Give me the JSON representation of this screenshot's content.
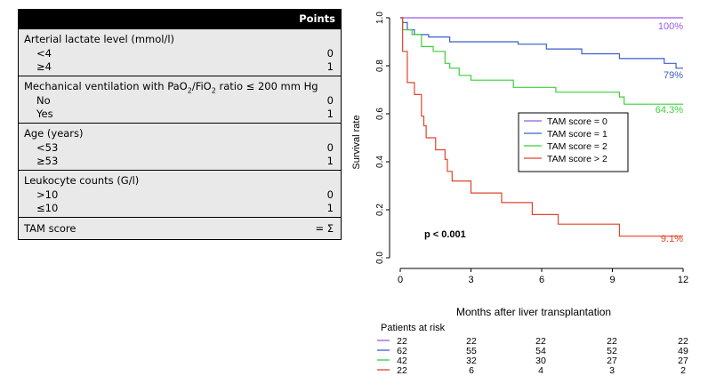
{
  "table": {
    "header_points": "Points",
    "groups": [
      {
        "title": "Arterial lactate level (mmol/l)",
        "rows": [
          {
            "label": "<4",
            "points": "0"
          },
          {
            "label": "≥4",
            "points": "1"
          }
        ]
      },
      {
        "title_prefix": "Mechanical ventilation with PaO",
        "title_sub1": "2",
        "title_mid": "/FiO",
        "title_sub2": "2",
        "title_suffix": " ratio ≤ 200 mm Hg",
        "rows": [
          {
            "label": "No",
            "points": "0"
          },
          {
            "label": "Yes",
            "points": "1"
          }
        ]
      },
      {
        "title": "Age (years)",
        "rows": [
          {
            "label": "<53",
            "points": "0"
          },
          {
            "label": "≥53",
            "points": "1"
          }
        ]
      },
      {
        "title": "Leukocyte counts (G/l)",
        "rows": [
          {
            "label": ">10",
            "points": "0"
          },
          {
            "label": "≤10",
            "points": "1"
          }
        ]
      }
    ],
    "total_label": "TAM score",
    "total_points": "= Σ"
  },
  "chart_data": {
    "type": "line",
    "step": true,
    "xlabel": "Months after liver transplantation",
    "ylabel": "Survival rate",
    "xlim": [
      0,
      12
    ],
    "ylim": [
      0,
      1.0
    ],
    "x_ticks": [
      "0",
      "3",
      "6",
      "9",
      "12"
    ],
    "y_ticks": [
      "0.0",
      "0.2",
      "0.4",
      "0.6",
      "0.8",
      "1.0"
    ],
    "legend_position": "right",
    "annotation": "p < 0.001",
    "series": [
      {
        "name": "TAM score = 0",
        "color": "#9b59e6",
        "end_label": "100%",
        "points": [
          [
            0,
            1.0
          ],
          [
            12,
            1.0
          ]
        ]
      },
      {
        "name": "TAM score = 1",
        "color": "#3a5fc8",
        "end_label": "79%",
        "points": [
          [
            0,
            1.0
          ],
          [
            0.1,
            0.98
          ],
          [
            0.3,
            0.95
          ],
          [
            0.6,
            0.93
          ],
          [
            1.2,
            0.92
          ],
          [
            2.1,
            0.9
          ],
          [
            5.0,
            0.89
          ],
          [
            6.2,
            0.87
          ],
          [
            7.7,
            0.85
          ],
          [
            9.3,
            0.83
          ],
          [
            11.2,
            0.81
          ],
          [
            11.7,
            0.79
          ],
          [
            12,
            0.79
          ]
        ]
      },
      {
        "name": "TAM score = 2",
        "color": "#3bcf3b",
        "end_label": "64.3%",
        "points": [
          [
            0,
            1.0
          ],
          [
            0.1,
            0.95
          ],
          [
            0.5,
            0.93
          ],
          [
            0.9,
            0.88
          ],
          [
            1.4,
            0.86
          ],
          [
            1.9,
            0.81
          ],
          [
            2.1,
            0.79
          ],
          [
            2.5,
            0.76
          ],
          [
            3.0,
            0.74
          ],
          [
            4.8,
            0.71
          ],
          [
            6.6,
            0.69
          ],
          [
            9.3,
            0.67
          ],
          [
            9.5,
            0.64
          ],
          [
            12,
            0.64
          ]
        ]
      },
      {
        "name": "TAM score > 2",
        "color": "#e0442b",
        "end_label": "9.1%",
        "points": [
          [
            0,
            1.0
          ],
          [
            0.1,
            0.86
          ],
          [
            0.3,
            0.73
          ],
          [
            0.6,
            0.68
          ],
          [
            0.9,
            0.59
          ],
          [
            1.0,
            0.55
          ],
          [
            1.1,
            0.5
          ],
          [
            1.5,
            0.45
          ],
          [
            1.9,
            0.41
          ],
          [
            2.0,
            0.36
          ],
          [
            2.2,
            0.32
          ],
          [
            3.0,
            0.27
          ],
          [
            4.3,
            0.23
          ],
          [
            5.6,
            0.18
          ],
          [
            6.7,
            0.14
          ],
          [
            9.3,
            0.09
          ],
          [
            12,
            0.09
          ]
        ]
      }
    ],
    "risk_table": {
      "title": "Patients at risk",
      "times": [
        0,
        3,
        6,
        9,
        12
      ],
      "rows": [
        {
          "color": "#9b59e6",
          "values": [
            "22",
            "22",
            "22",
            "22",
            "22"
          ]
        },
        {
          "color": "#3a5fc8",
          "values": [
            "62",
            "55",
            "54",
            "52",
            "49"
          ]
        },
        {
          "color": "#3bcf3b",
          "values": [
            "42",
            "32",
            "30",
            "27",
            "27"
          ]
        },
        {
          "color": "#e0442b",
          "values": [
            "22",
            "6",
            "4",
            "3",
            "2"
          ]
        }
      ]
    }
  }
}
